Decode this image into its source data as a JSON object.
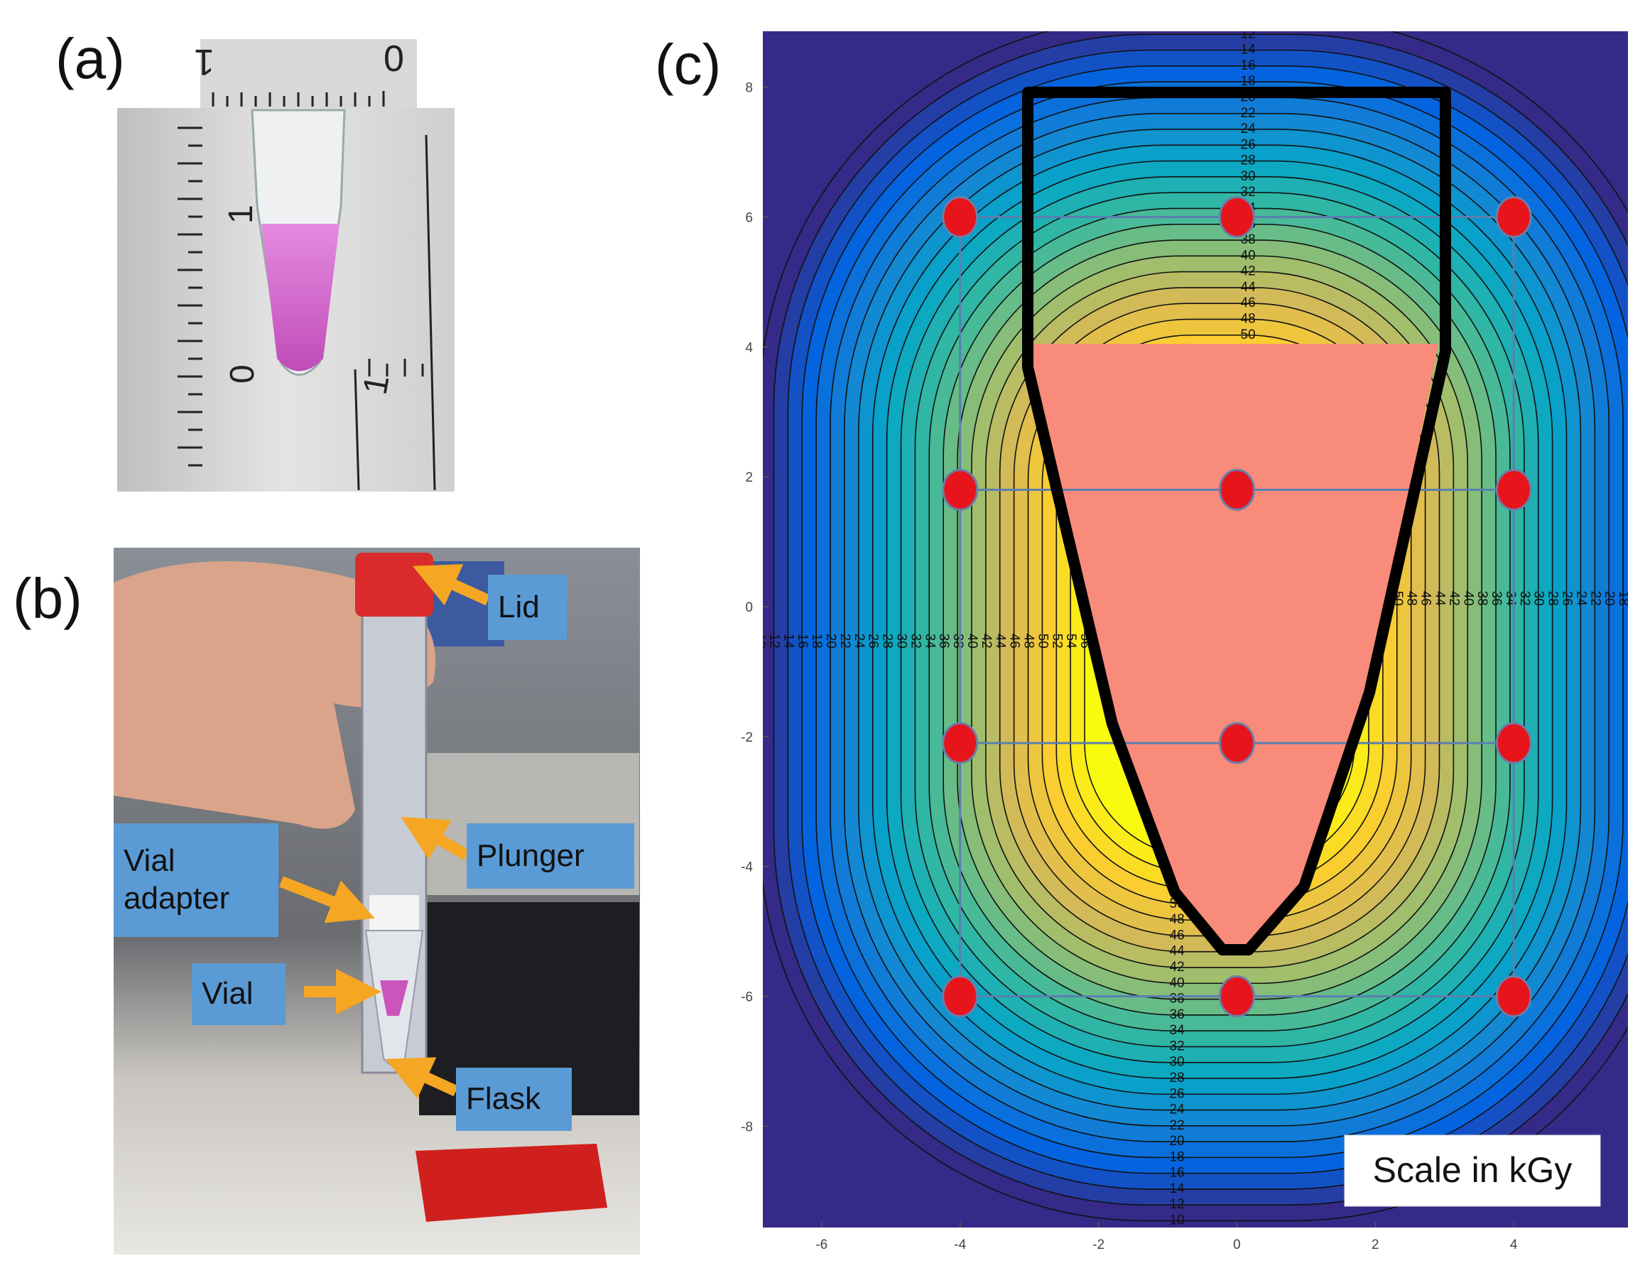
{
  "panels": {
    "a": {
      "label": "(a)",
      "ruler_labels": [
        "1",
        "0",
        "1",
        "0",
        "1"
      ]
    },
    "b": {
      "label": "(b)",
      "callouts": [
        "Lid",
        "Plunger",
        "Vial adapter",
        "Vial",
        "Flask"
      ]
    },
    "c": {
      "label": "(c)"
    }
  },
  "chart_data": {
    "type": "contour",
    "annotation": "Scale in kGy",
    "xlim": [
      -6.85,
      5.65
    ],
    "ylim": [
      -9.56,
      8.86
    ],
    "xticks": [
      -6,
      -4,
      -2,
      0,
      2,
      4
    ],
    "yticks": [
      8,
      6,
      4,
      2,
      0,
      -2,
      -4,
      -6,
      -8
    ],
    "levels": [
      10,
      12,
      14,
      16,
      18,
      20,
      22,
      24,
      26,
      28,
      30,
      32,
      34,
      36,
      38,
      40,
      42,
      44,
      46,
      48,
      50,
      52,
      54,
      56
    ],
    "colormap": [
      "#352a87",
      "#0363e1",
      "#1485d4",
      "#06a7c6",
      "#38b99e",
      "#92bf73",
      "#d9ba56",
      "#fcce2e",
      "#f9fb0e"
    ],
    "points": {
      "x": [
        -4,
        0,
        4,
        -4,
        0,
        4,
        -4,
        0,
        4,
        -4,
        0,
        4
      ],
      "y": [
        6,
        6,
        6,
        1.8,
        1.8,
        1.8,
        -2.1,
        -2.1,
        -2.1,
        -6,
        -6,
        -6
      ],
      "color": "#e8141c"
    }
  }
}
